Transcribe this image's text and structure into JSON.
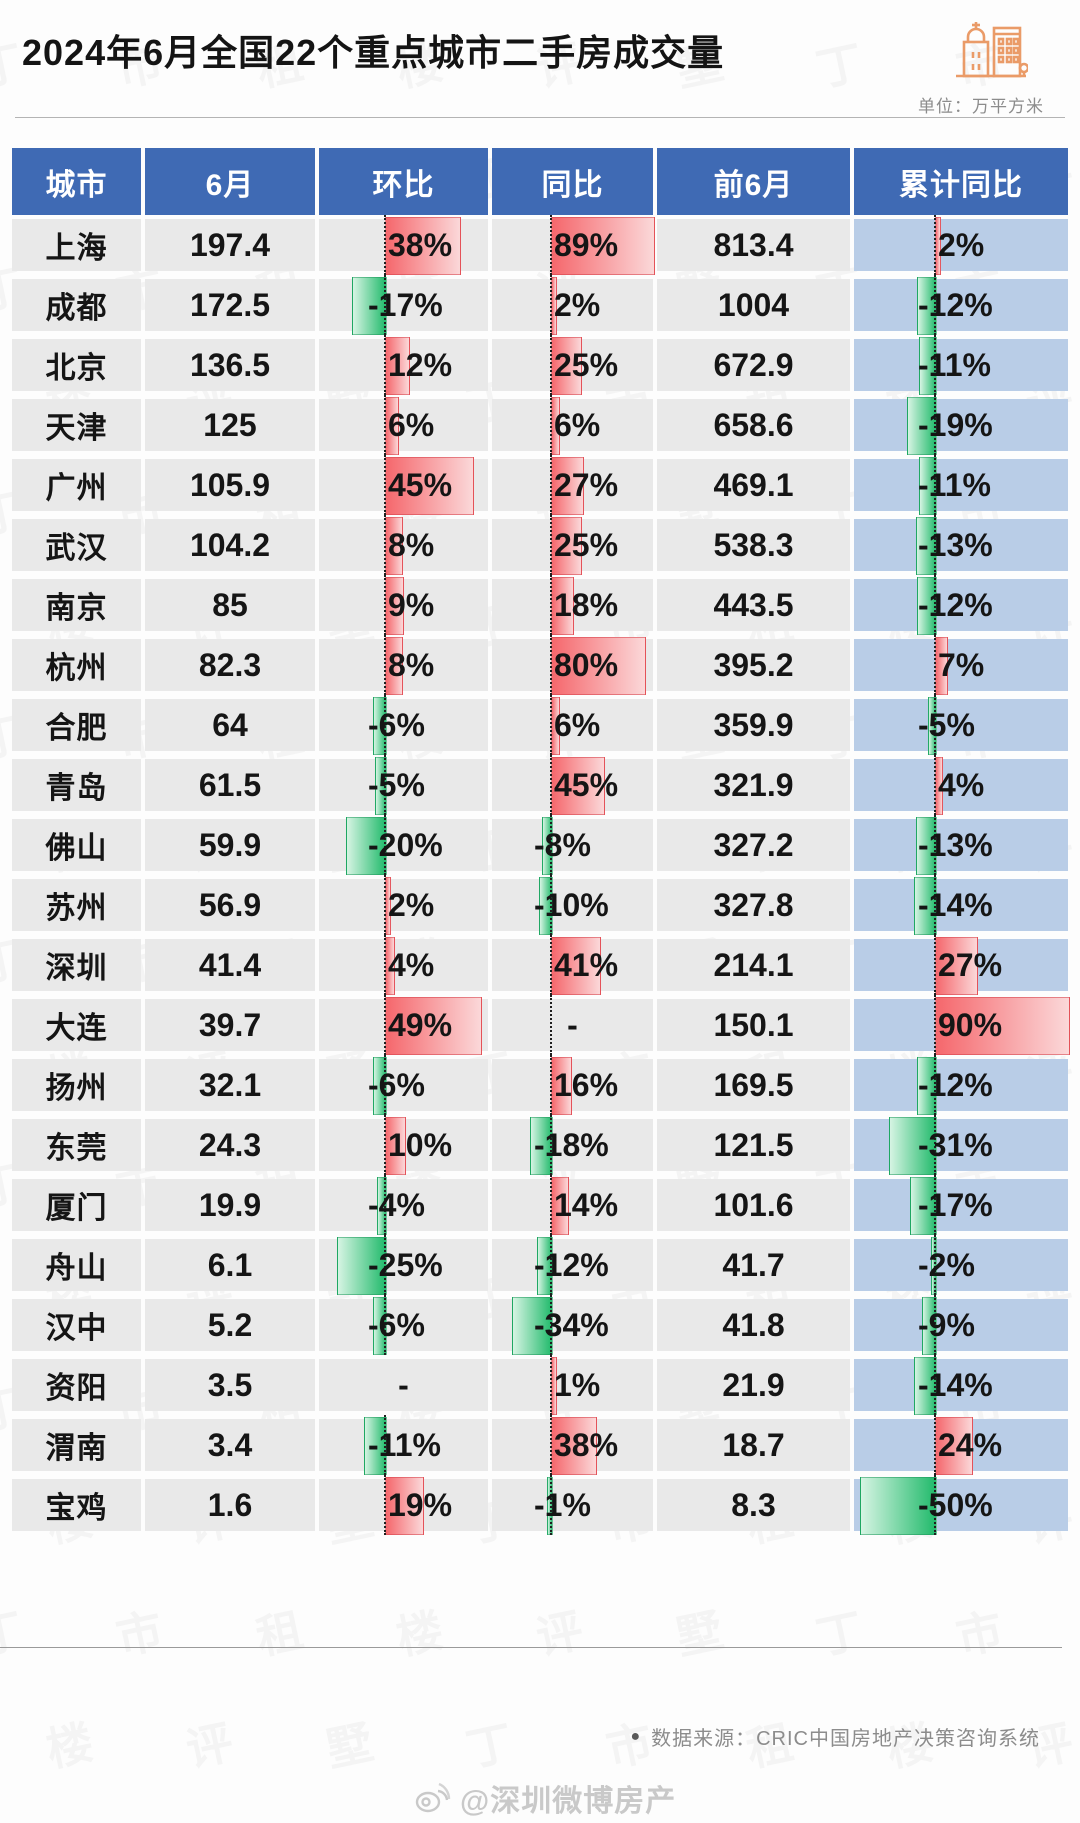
{
  "title": "2024年6月全国22个重点城市二手房成交量",
  "unit_label": "单位：万平方米",
  "source_bullet": "●",
  "source_note": "数据来源：CRIC中国房地产决策咨询系统",
  "weibo_watermark": "@深圳微博房产",
  "watermark_glyphs": [
    "丁",
    "市",
    "租",
    "楼",
    "评",
    "墅"
  ],
  "colors": {
    "header_blue": "#3f6ab4",
    "column_light_blue": "#b9cde7",
    "row_gray": "#e9e9e9",
    "bar_red": "#f5676c",
    "bar_red_light": "#fbd8d9",
    "bar_green": "#21ba6b",
    "bar_green_light": "#d6f4e3",
    "icon_orange": "#ea9b68"
  },
  "chart_data": {
    "type": "table",
    "title": "2024年6月全国22个重点城市二手房成交量",
    "unit": "万平方米",
    "columns": [
      "城市",
      "6月",
      "环比",
      "同比",
      "前6月",
      "累计同比"
    ],
    "bar_columns_note": "环比/同比/累计同比 cells contain data bars: red = positive, green = negative, anchored on a dotted zero line",
    "rows": [
      {
        "city": "上海",
        "june": "197.4",
        "mom": {
          "value": 38,
          "label": "38%"
        },
        "yoy": {
          "value": 89,
          "label": "89%"
        },
        "first6": "813.4",
        "cum": {
          "value": 2,
          "label": "2%"
        }
      },
      {
        "city": "成都",
        "june": "172.5",
        "mom": {
          "value": -17,
          "label": "-17%"
        },
        "yoy": {
          "value": 2,
          "label": "2%"
        },
        "first6": "1004",
        "cum": {
          "value": -12,
          "label": "-12%"
        }
      },
      {
        "city": "北京",
        "june": "136.5",
        "mom": {
          "value": 12,
          "label": "12%"
        },
        "yoy": {
          "value": 25,
          "label": "25%"
        },
        "first6": "672.9",
        "cum": {
          "value": -11,
          "label": "-11%"
        }
      },
      {
        "city": "天津",
        "june": "125",
        "mom": {
          "value": 6,
          "label": "6%"
        },
        "yoy": {
          "value": 6,
          "label": "6%"
        },
        "first6": "658.6",
        "cum": {
          "value": -19,
          "label": "-19%"
        }
      },
      {
        "city": "广州",
        "june": "105.9",
        "mom": {
          "value": 45,
          "label": "45%"
        },
        "yoy": {
          "value": 27,
          "label": "27%"
        },
        "first6": "469.1",
        "cum": {
          "value": -11,
          "label": "-11%"
        }
      },
      {
        "city": "武汉",
        "june": "104.2",
        "mom": {
          "value": 8,
          "label": "8%"
        },
        "yoy": {
          "value": 25,
          "label": "25%"
        },
        "first6": "538.3",
        "cum": {
          "value": -13,
          "label": "-13%"
        }
      },
      {
        "city": "南京",
        "june": "85",
        "mom": {
          "value": 9,
          "label": "9%"
        },
        "yoy": {
          "value": 18,
          "label": "18%"
        },
        "first6": "443.5",
        "cum": {
          "value": -12,
          "label": "-12%"
        }
      },
      {
        "city": "杭州",
        "june": "82.3",
        "mom": {
          "value": 8,
          "label": "8%"
        },
        "yoy": {
          "value": 80,
          "label": "80%"
        },
        "first6": "395.2",
        "cum": {
          "value": 7,
          "label": "7%"
        }
      },
      {
        "city": "合肥",
        "june": "64",
        "mom": {
          "value": -6,
          "label": "-6%"
        },
        "yoy": {
          "value": 6,
          "label": "6%"
        },
        "first6": "359.9",
        "cum": {
          "value": -5,
          "label": "-5%"
        }
      },
      {
        "city": "青岛",
        "june": "61.5",
        "mom": {
          "value": -5,
          "label": "-5%"
        },
        "yoy": {
          "value": 45,
          "label": "45%"
        },
        "first6": "321.9",
        "cum": {
          "value": 4,
          "label": "4%"
        }
      },
      {
        "city": "佛山",
        "june": "59.9",
        "mom": {
          "value": -20,
          "label": "-20%"
        },
        "yoy": {
          "value": -8,
          "label": "-8%"
        },
        "first6": "327.2",
        "cum": {
          "value": -13,
          "label": "-13%"
        }
      },
      {
        "city": "苏州",
        "june": "56.9",
        "mom": {
          "value": 2,
          "label": "2%"
        },
        "yoy": {
          "value": -10,
          "label": "-10%"
        },
        "first6": "327.8",
        "cum": {
          "value": -14,
          "label": "-14%"
        }
      },
      {
        "city": "深圳",
        "june": "41.4",
        "mom": {
          "value": 4,
          "label": "4%"
        },
        "yoy": {
          "value": 41,
          "label": "41%"
        },
        "first6": "214.1",
        "cum": {
          "value": 27,
          "label": "27%"
        }
      },
      {
        "city": "大连",
        "june": "39.7",
        "mom": {
          "value": 49,
          "label": "49%"
        },
        "yoy": {
          "value": null,
          "label": "-"
        },
        "first6": "150.1",
        "cum": {
          "value": 90,
          "label": "90%"
        }
      },
      {
        "city": "扬州",
        "june": "32.1",
        "mom": {
          "value": -6,
          "label": "-6%"
        },
        "yoy": {
          "value": 16,
          "label": "16%"
        },
        "first6": "169.5",
        "cum": {
          "value": -12,
          "label": "-12%"
        }
      },
      {
        "city": "东莞",
        "june": "24.3",
        "mom": {
          "value": 10,
          "label": "10%"
        },
        "yoy": {
          "value": -18,
          "label": "-18%"
        },
        "first6": "121.5",
        "cum": {
          "value": -31,
          "label": "-31%"
        }
      },
      {
        "city": "厦门",
        "june": "19.9",
        "mom": {
          "value": -4,
          "label": "-4%"
        },
        "yoy": {
          "value": 14,
          "label": "14%"
        },
        "first6": "101.6",
        "cum": {
          "value": -17,
          "label": "-17%"
        }
      },
      {
        "city": "舟山",
        "june": "6.1",
        "mom": {
          "value": -25,
          "label": "-25%"
        },
        "yoy": {
          "value": -12,
          "label": "-12%"
        },
        "first6": "41.7",
        "cum": {
          "value": -2,
          "label": "-2%"
        }
      },
      {
        "city": "汉中",
        "june": "5.2",
        "mom": {
          "value": -6,
          "label": "-6%"
        },
        "yoy": {
          "value": -34,
          "label": "-34%"
        },
        "first6": "41.8",
        "cum": {
          "value": -9,
          "label": "-9%"
        }
      },
      {
        "city": "资阳",
        "june": "3.5",
        "mom": {
          "value": null,
          "label": "-"
        },
        "yoy": {
          "value": 1,
          "label": "1%"
        },
        "first6": "21.9",
        "cum": {
          "value": -14,
          "label": "-14%"
        }
      },
      {
        "city": "渭南",
        "june": "3.4",
        "mom": {
          "value": -11,
          "label": "-11%"
        },
        "yoy": {
          "value": 38,
          "label": "38%"
        },
        "first6": "18.7",
        "cum": {
          "value": 24,
          "label": "24%"
        }
      },
      {
        "city": "宝鸡",
        "june": "1.6",
        "mom": {
          "value": 19,
          "label": "19%"
        },
        "yoy": {
          "value": -1,
          "label": "-1%"
        },
        "first6": "8.3",
        "cum": {
          "value": -50,
          "label": "-50%"
        }
      }
    ]
  }
}
